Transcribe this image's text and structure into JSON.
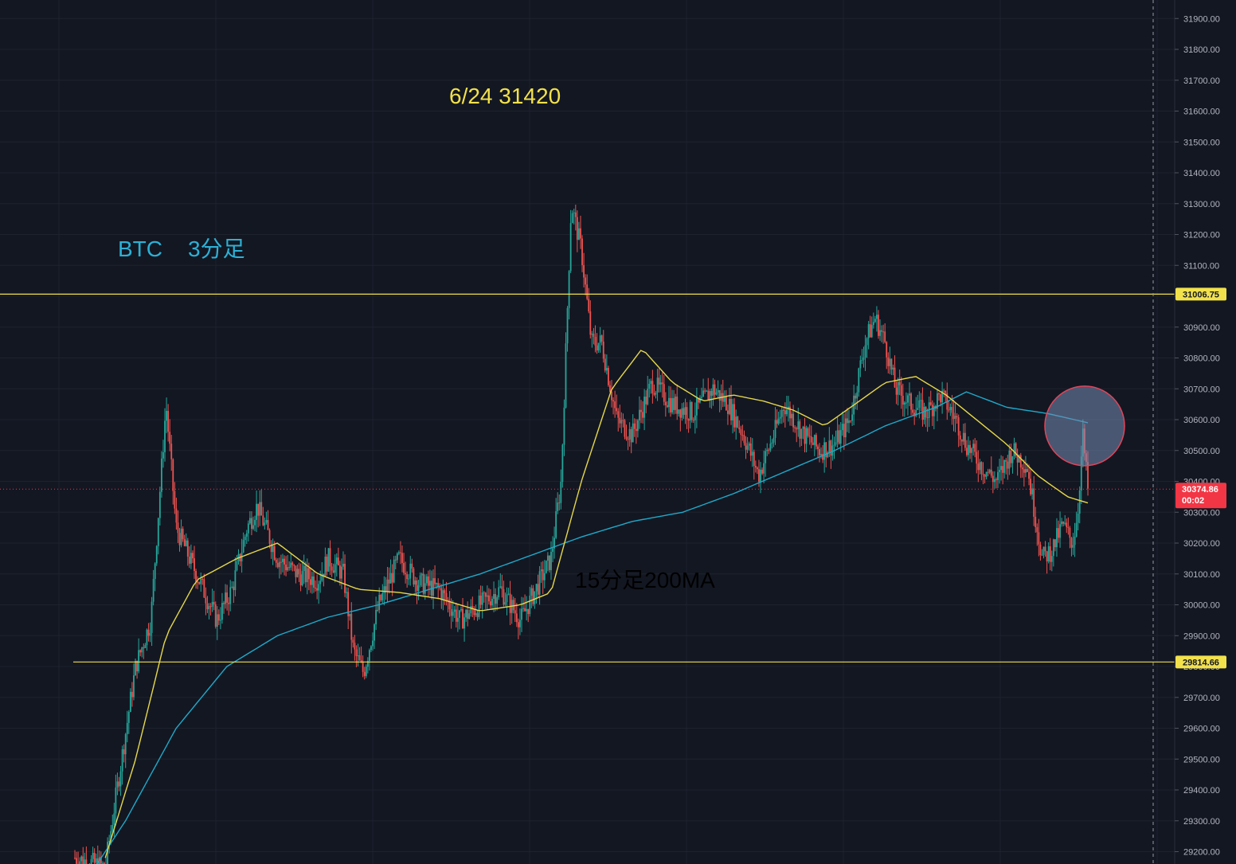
{
  "chart_data": {
    "type": "candlestick",
    "symbol": "BTC",
    "annotations": [
      {
        "key": "symbol",
        "text": "BTC",
        "color": "#2cb1d6"
      },
      {
        "key": "timeframe",
        "text": "3分足",
        "color": "#2cb1d6"
      },
      {
        "key": "peak",
        "text": "6/24 31420",
        "color": "#f2e14b"
      },
      {
        "key": "ma_label",
        "text": "15分足200MA",
        "color": "#2cb1d6"
      }
    ],
    "y_axis": {
      "min": 29160,
      "max": 31960,
      "ticks": [
        "31900.00",
        "31800.00",
        "31700.00",
        "31600.00",
        "31500.00",
        "31400.00",
        "31300.00",
        "31200.00",
        "31100.00",
        "31000.00",
        "30900.00",
        "30800.00",
        "30700.00",
        "30600.00",
        "30500.00",
        "30400.00",
        "30300.00",
        "30200.00",
        "30100.00",
        "30000.00",
        "29900.00",
        "29800.00",
        "29700.00",
        "29600.00",
        "29500.00",
        "29400.00",
        "29300.00",
        "29200.00"
      ]
    },
    "horizontal_lines": [
      {
        "value": 31006.75,
        "label": "31006.75",
        "color": "#f2e14b"
      },
      {
        "value": 29814.66,
        "label": "29814.66",
        "color": "#f2e14b"
      }
    ],
    "current_price": {
      "value": 30374.86,
      "label": "30374.86",
      "countdown": "00:02",
      "color": "#f23645"
    },
    "price_path": [
      [
        0,
        29180
      ],
      [
        0.03,
        29150
      ],
      [
        0.06,
        29800
      ],
      [
        0.075,
        29950
      ],
      [
        0.09,
        30650
      ],
      [
        0.1,
        30250
      ],
      [
        0.12,
        30100
      ],
      [
        0.14,
        29950
      ],
      [
        0.155,
        30050
      ],
      [
        0.17,
        30250
      ],
      [
        0.18,
        30320
      ],
      [
        0.2,
        30150
      ],
      [
        0.22,
        30100
      ],
      [
        0.24,
        30080
      ],
      [
        0.25,
        30150
      ],
      [
        0.265,
        30100
      ],
      [
        0.275,
        29850
      ],
      [
        0.285,
        29780
      ],
      [
        0.3,
        30000
      ],
      [
        0.32,
        30150
      ],
      [
        0.34,
        30070
      ],
      [
        0.36,
        30050
      ],
      [
        0.38,
        29950
      ],
      [
        0.4,
        30000
      ],
      [
        0.42,
        30050
      ],
      [
        0.44,
        29950
      ],
      [
        0.455,
        30050
      ],
      [
        0.47,
        30150
      ],
      [
        0.48,
        30400
      ],
      [
        0.49,
        31300
      ],
      [
        0.5,
        31150
      ],
      [
        0.51,
        30850
      ],
      [
        0.52,
        30850
      ],
      [
        0.535,
        30600
      ],
      [
        0.55,
        30550
      ],
      [
        0.57,
        30720
      ],
      [
        0.59,
        30650
      ],
      [
        0.61,
        30620
      ],
      [
        0.63,
        30700
      ],
      [
        0.645,
        30650
      ],
      [
        0.66,
        30550
      ],
      [
        0.675,
        30420
      ],
      [
        0.69,
        30550
      ],
      [
        0.7,
        30650
      ],
      [
        0.72,
        30550
      ],
      [
        0.735,
        30500
      ],
      [
        0.75,
        30520
      ],
      [
        0.765,
        30600
      ],
      [
        0.78,
        30850
      ],
      [
        0.79,
        30930
      ],
      [
        0.8,
        30850
      ],
      [
        0.81,
        30700
      ],
      [
        0.825,
        30650
      ],
      [
        0.84,
        30620
      ],
      [
        0.855,
        30680
      ],
      [
        0.87,
        30600
      ],
      [
        0.88,
        30520
      ],
      [
        0.895,
        30450
      ],
      [
        0.91,
        30400
      ],
      [
        0.925,
        30500
      ],
      [
        0.94,
        30450
      ],
      [
        0.955,
        30150
      ],
      [
        0.965,
        30180
      ],
      [
        0.975,
        30260
      ],
      [
        0.985,
        30200
      ],
      [
        0.99,
        30300
      ],
      [
        0.995,
        30550
      ],
      [
        1.0,
        30374.86
      ]
    ],
    "ma_slow_path": [
      [
        0,
        29050
      ],
      [
        0.05,
        29300
      ],
      [
        0.1,
        29600
      ],
      [
        0.15,
        29800
      ],
      [
        0.2,
        29900
      ],
      [
        0.25,
        29960
      ],
      [
        0.3,
        30000
      ],
      [
        0.35,
        30050
      ],
      [
        0.4,
        30100
      ],
      [
        0.45,
        30160
      ],
      [
        0.5,
        30220
      ],
      [
        0.55,
        30270
      ],
      [
        0.6,
        30300
      ],
      [
        0.65,
        30360
      ],
      [
        0.7,
        30430
      ],
      [
        0.75,
        30500
      ],
      [
        0.8,
        30580
      ],
      [
        0.85,
        30640
      ],
      [
        0.88,
        30690
      ],
      [
        0.92,
        30640
      ],
      [
        0.96,
        30620
      ],
      [
        1.0,
        30590
      ]
    ],
    "ma_fast_path": [
      [
        0.03,
        29180
      ],
      [
        0.06,
        29500
      ],
      [
        0.09,
        29900
      ],
      [
        0.12,
        30080
      ],
      [
        0.16,
        30150
      ],
      [
        0.2,
        30200
      ],
      [
        0.24,
        30100
      ],
      [
        0.28,
        30050
      ],
      [
        0.32,
        30040
      ],
      [
        0.36,
        30020
      ],
      [
        0.4,
        29980
      ],
      [
        0.44,
        30000
      ],
      [
        0.47,
        30040
      ],
      [
        0.5,
        30400
      ],
      [
        0.53,
        30700
      ],
      [
        0.56,
        30830
      ],
      [
        0.59,
        30720
      ],
      [
        0.62,
        30660
      ],
      [
        0.65,
        30680
      ],
      [
        0.68,
        30660
      ],
      [
        0.71,
        30630
      ],
      [
        0.74,
        30580
      ],
      [
        0.77,
        30650
      ],
      [
        0.8,
        30720
      ],
      [
        0.83,
        30740
      ],
      [
        0.86,
        30680
      ],
      [
        0.89,
        30600
      ],
      [
        0.92,
        30520
      ],
      [
        0.95,
        30420
      ],
      [
        0.98,
        30350
      ],
      [
        1.0,
        30330
      ]
    ],
    "highlight_circle": {
      "center_value": 30590,
      "x_fraction": 1.0
    }
  }
}
